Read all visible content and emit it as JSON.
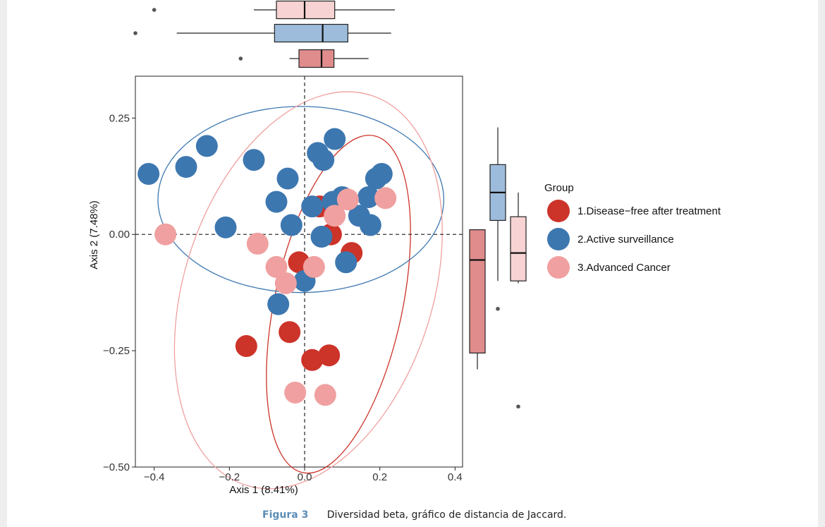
{
  "figure": {
    "caption_label": "Figura 3",
    "caption_text": "Diversidad beta, gráfico de distancia de Jaccard."
  },
  "chart_data": {
    "type": "scatter",
    "xlabel": "Axis 1 (8.41%)",
    "ylabel": "Axis 2 (7.48%)",
    "xlim": [
      -0.45,
      0.42
    ],
    "ylim": [
      -0.5,
      0.34
    ],
    "xticks": [
      -0.4,
      -0.2,
      0.0,
      0.2,
      0.4
    ],
    "xtick_labels": [
      "−0.4",
      "−0.2",
      "0.0",
      "0.2",
      "0.4"
    ],
    "yticks": [
      0.25,
      0.0,
      -0.25,
      -0.5
    ],
    "ytick_labels": [
      "0.25",
      "0.00",
      "−0.25",
      "−0.50"
    ],
    "grid": false,
    "reference_lines": {
      "x": 0,
      "y": 0,
      "style": "dashed"
    },
    "legend": {
      "title": "Group",
      "placement": "right",
      "entries": [
        "1.Disease−free after treatment",
        "2.Active surveillance",
        "3.Advanced Cancer"
      ]
    },
    "series": [
      {
        "name": "1.Disease−free after treatment",
        "color": "#cc3329",
        "points": [
          [
            0.04,
            0.06
          ],
          [
            0.07,
            0.0
          ],
          [
            0.125,
            -0.04
          ],
          [
            -0.015,
            -0.06
          ],
          [
            -0.04,
            -0.21
          ],
          [
            -0.155,
            -0.24
          ],
          [
            0.065,
            -0.26
          ],
          [
            0.02,
            -0.27
          ]
        ],
        "ellipse": {
          "center": [
            0.09,
            -0.15
          ],
          "axes": [
            0.17,
            0.37
          ],
          "angle": 12
        }
      },
      {
        "name": "2.Active surveillance",
        "color": "#3d77b0",
        "points": [
          [
            -0.415,
            0.13
          ],
          [
            -0.315,
            0.145
          ],
          [
            -0.26,
            0.19
          ],
          [
            -0.135,
            0.16
          ],
          [
            -0.045,
            0.12
          ],
          [
            0.035,
            0.175
          ],
          [
            0.08,
            0.205
          ],
          [
            0.05,
            0.16
          ],
          [
            0.205,
            0.13
          ],
          [
            0.19,
            0.12
          ],
          [
            0.17,
            0.08
          ],
          [
            0.1,
            0.08
          ],
          [
            0.075,
            0.07
          ],
          [
            0.02,
            0.06
          ],
          [
            -0.075,
            0.07
          ],
          [
            -0.21,
            0.015
          ],
          [
            -0.035,
            0.02
          ],
          [
            0.145,
            0.04
          ],
          [
            0.175,
            0.02
          ],
          [
            0.045,
            -0.005
          ],
          [
            0.11,
            -0.06
          ],
          [
            0.0,
            -0.1
          ],
          [
            -0.07,
            -0.15
          ]
        ],
        "ellipse": {
          "center": [
            -0.01,
            0.075
          ],
          "axes": [
            0.38,
            0.2
          ],
          "angle": 0
        }
      },
      {
        "name": "3.Advanced Cancer",
        "color": "#f0a0a0",
        "points": [
          [
            -0.37,
            0.0
          ],
          [
            -0.125,
            -0.02
          ],
          [
            -0.075,
            -0.07
          ],
          [
            0.025,
            -0.07
          ],
          [
            -0.05,
            -0.105
          ],
          [
            0.115,
            0.075
          ],
          [
            0.08,
            0.04
          ],
          [
            0.215,
            0.078
          ],
          [
            -0.025,
            -0.34
          ],
          [
            0.055,
            -0.345
          ]
        ],
        "ellipse": {
          "center": [
            0.01,
            -0.12
          ],
          "axes": [
            0.33,
            0.44
          ],
          "angle": 18
        }
      }
    ],
    "marginal_boxplots": {
      "x_axis": [
        {
          "group": "3.Advanced Cancer",
          "min": -0.135,
          "q1": -0.075,
          "median": 0.0,
          "q3": 0.08,
          "max": 0.24,
          "outliers": [
            -0.4
          ]
        },
        {
          "group": "2.Active surveillance",
          "min": -0.34,
          "q1": -0.08,
          "median": 0.048,
          "q3": 0.115,
          "max": 0.23,
          "outliers": [
            -0.45
          ]
        },
        {
          "group": "1.Disease−free after treatment",
          "min": -0.04,
          "q1": -0.015,
          "median": 0.045,
          "q3": 0.078,
          "max": 0.17,
          "outliers": [
            -0.17
          ]
        }
      ],
      "y_axis": [
        {
          "group": "1.Disease−free after treatment",
          "min": -0.29,
          "q1": -0.255,
          "median": -0.055,
          "q3": 0.01,
          "max": 0.01,
          "outliers": []
        },
        {
          "group": "2.Active surveillance",
          "min": -0.1,
          "q1": 0.03,
          "median": 0.09,
          "q3": 0.15,
          "max": 0.23,
          "outliers": [
            -0.16
          ]
        },
        {
          "group": "3.Advanced Cancer",
          "min": -0.105,
          "q1": -0.1,
          "median": -0.04,
          "q3": 0.038,
          "max": 0.09,
          "outliers": [
            -0.37
          ]
        }
      ]
    }
  }
}
